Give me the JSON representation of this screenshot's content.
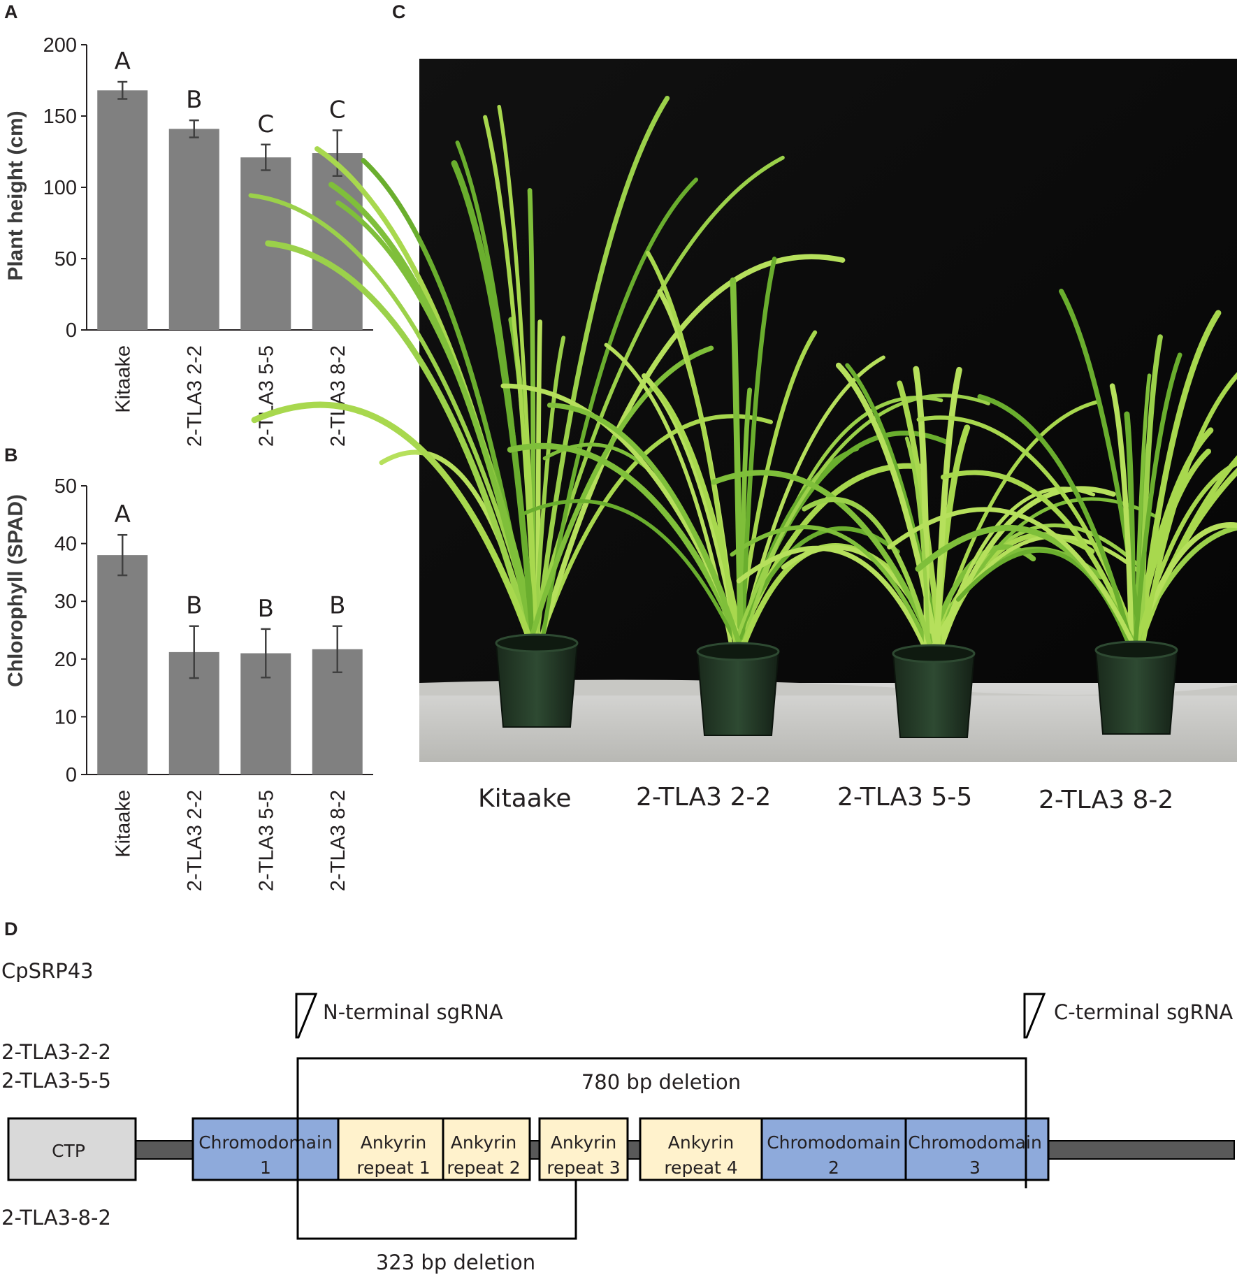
{
  "panels": {
    "a": "A",
    "b": "B",
    "c": "C",
    "d": "D"
  },
  "chart_data": [
    {
      "type": "bar",
      "ylabel": "Plant height (cm)",
      "categories": [
        "Kitaake",
        "2-TLA3 2-2",
        "2-TLA3 5-5",
        "2-TLA3 8-2"
      ],
      "values": [
        168,
        141,
        121,
        124
      ],
      "errors": [
        6,
        6,
        9,
        16
      ],
      "significance": [
        "A",
        "B",
        "C",
        "C"
      ],
      "ylim": [
        0,
        200
      ],
      "yticks": [
        0,
        50,
        100,
        150,
        200
      ],
      "bar_color": "#808080"
    },
    {
      "type": "bar",
      "ylabel": "Chlorophyll (SPAD)",
      "categories": [
        "Kitaake",
        "2-TLA3 2-2",
        "2-TLA3 5-5",
        "2-TLA3 8-2"
      ],
      "values": [
        38,
        21.2,
        21,
        21.7
      ],
      "errors": [
        3.5,
        4.5,
        4.2,
        4.0
      ],
      "significance": [
        "A",
        "B",
        "B",
        "B"
      ],
      "ylim": [
        0,
        50
      ],
      "yticks": [
        0,
        10,
        20,
        30,
        40,
        50
      ],
      "bar_color": "#808080"
    }
  ],
  "photo": {
    "labels": [
      "Kitaake",
      "2-TLA3 2-2",
      "2-TLA3 5-5",
      "2-TLA3 8-2"
    ]
  },
  "diagram": {
    "protein": "CpSRP43",
    "line_a": "2-TLA3-2-2",
    "line_b": "2-TLA3-5-5",
    "line_c": "2-TLA3-8-2",
    "n_sgrna": "N-terminal sgRNA",
    "c_sgrna": "C-terminal sgRNA",
    "del_780": "780 bp deletion",
    "del_323": "323 bp deletion",
    "domains": {
      "ctp": "CTP",
      "chromo1_a": "Chromodomain",
      "chromo1_b": "1",
      "ank1_a": "Ankyrin",
      "ank1_b": "repeat 1",
      "ank2_a": "Ankyrin",
      "ank2_b": "repeat 2",
      "ank3_a": "Ankyrin",
      "ank3_b": "repeat 3",
      "ank4_a": "Ankyrin",
      "ank4_b": "repeat 4",
      "chromo2_a": "Chromodomain",
      "chromo2_b": "2",
      "chromo3_a": "Chromodomain",
      "chromo3_b": "3"
    },
    "colors": {
      "ctp": "#d9d9d9",
      "chromodomain": "#8eaadb",
      "ankyrin": "#fff2cc",
      "backbone": "#595959"
    }
  }
}
